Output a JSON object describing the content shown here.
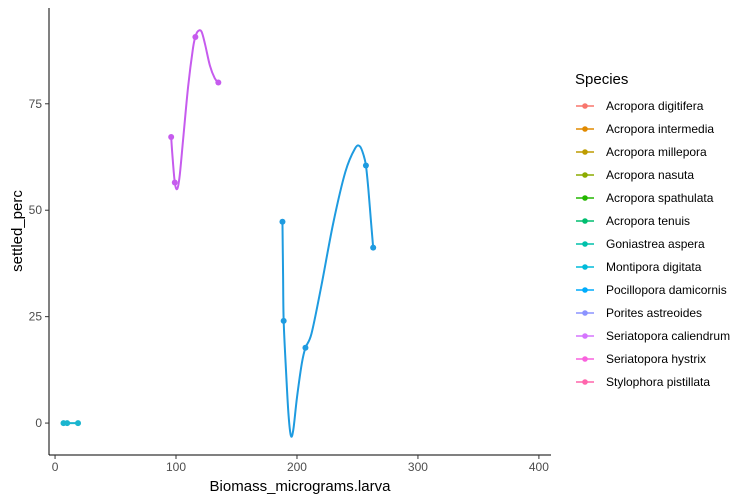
{
  "chart_data": {
    "type": "line",
    "xlabel": "Biomass_micrograms.larva",
    "ylabel": "settled_perc",
    "xlim": [
      -5,
      410
    ],
    "ylim": [
      -7.5,
      97.5
    ],
    "x_ticks": [
      0,
      100,
      200,
      300,
      400
    ],
    "y_ticks": [
      0,
      25,
      50,
      75
    ],
    "x_tick_labels": [
      "0",
      "100",
      "200",
      "300",
      "400"
    ],
    "y_tick_labels": [
      "0",
      "25",
      "50",
      "75"
    ],
    "grid": false,
    "smoothing": "spline",
    "legend": {
      "title": "Species",
      "placement": "right",
      "entries": [
        {
          "name": "Acropora digitifera",
          "color": "#F8766D"
        },
        {
          "name": "Acropora intermedia",
          "color": "#E18A00"
        },
        {
          "name": "Acropora millepora",
          "color": "#BE9C00"
        },
        {
          "name": "Acropora nasuta",
          "color": "#8CAB00"
        },
        {
          "name": "Acropora spathulata",
          "color": "#24B700"
        },
        {
          "name": "Acropora tenuis",
          "color": "#00BE70"
        },
        {
          "name": "Goniastrea aspera",
          "color": "#00C1AB"
        },
        {
          "name": "Montipora digitata",
          "color": "#00BBDA"
        },
        {
          "name": "Pocillopora damicornis",
          "color": "#00ACFC"
        },
        {
          "name": "Porites astreoides",
          "color": "#8B93FF"
        },
        {
          "name": "Seriatopora caliendrum",
          "color": "#D575FE"
        },
        {
          "name": "Seriatopora hystrix",
          "color": "#F962DD"
        },
        {
          "name": "Stylophora pistillata",
          "color": "#FF65AC"
        }
      ]
    },
    "series": [
      {
        "name": "Montipora digitata",
        "color": "#1BB5CF",
        "points": [
          [
            7,
            0
          ],
          [
            10,
            0
          ],
          [
            19,
            0
          ]
        ]
      },
      {
        "name": "Seriatopora caliendrum",
        "color": "#C65BEE",
        "points": [
          [
            96,
            67.2
          ],
          [
            99,
            56.5
          ],
          [
            116,
            90.7
          ],
          [
            135,
            80
          ]
        ]
      },
      {
        "name": "Pocillopora damicornis",
        "color": "#1E9BE0",
        "points": [
          [
            188,
            47.3
          ],
          [
            189,
            24
          ],
          [
            207,
            17.7
          ],
          [
            257,
            60.5
          ],
          [
            263,
            41.2
          ]
        ]
      }
    ],
    "curves": [
      {
        "series": "Montipora digitata",
        "path": [
          [
            7,
            0
          ],
          [
            13,
            0
          ],
          [
            19,
            0
          ]
        ]
      },
      {
        "series": "Seriatopora caliendrum",
        "path": [
          [
            96,
            67.2
          ],
          [
            97,
            63
          ],
          [
            99,
            56.5
          ],
          [
            101,
            55
          ],
          [
            103,
            58
          ],
          [
            106,
            67
          ],
          [
            110,
            79
          ],
          [
            114,
            88
          ],
          [
            116,
            90.7
          ],
          [
            118,
            92
          ],
          [
            121,
            92
          ],
          [
            124,
            89
          ],
          [
            128,
            84
          ],
          [
            132,
            81
          ],
          [
            135,
            80
          ]
        ]
      },
      {
        "series": "Pocillopora damicornis",
        "path": [
          [
            188,
            47.3
          ],
          [
            188.5,
            35
          ],
          [
            189,
            24
          ],
          [
            191,
            12
          ],
          [
            193,
            2
          ],
          [
            195,
            -3
          ],
          [
            197,
            -1.5
          ],
          [
            200,
            6
          ],
          [
            204,
            14
          ],
          [
            207,
            17.7
          ],
          [
            212,
            21
          ],
          [
            220,
            32
          ],
          [
            230,
            47
          ],
          [
            240,
            59
          ],
          [
            248,
            64.5
          ],
          [
            252,
            65
          ],
          [
            255,
            63
          ],
          [
            257,
            60.5
          ],
          [
            259,
            55
          ],
          [
            261,
            48
          ],
          [
            263,
            41.2
          ]
        ]
      }
    ]
  }
}
